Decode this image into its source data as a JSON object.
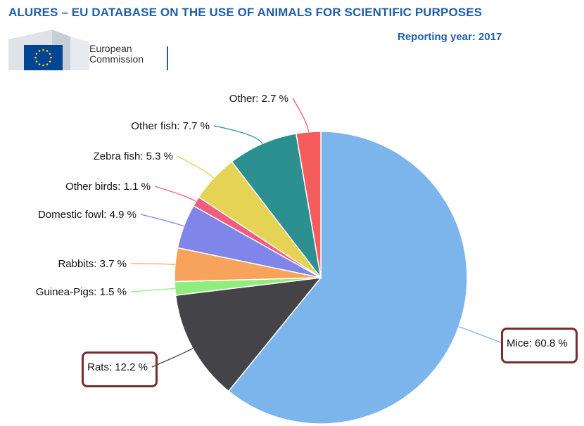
{
  "header": {
    "title": "ALURES – EU DATABASE ON THE USE OF ANIMALS FOR SCIENTIFIC PURPOSES",
    "reporting_year": "Reporting year: 2017"
  },
  "logo": {
    "line1": "European",
    "line2": "Commission",
    "flag_color": "#004494",
    "star_color": "#ffdd00"
  },
  "chart_data": {
    "type": "pie",
    "title": "",
    "start_angle_deg": 0,
    "slices": [
      {
        "label": "Mice: 60.8 %",
        "value": 60.8,
        "color": "#7cb5ec",
        "highlight": true
      },
      {
        "label": "Rats: 12.2 %",
        "value": 12.2,
        "color": "#434348",
        "highlight": true
      },
      {
        "label": "Guinea-Pigs: 1.5 %",
        "value": 1.5,
        "color": "#90ed7d",
        "highlight": false
      },
      {
        "label": "Rabbits: 3.7 %",
        "value": 3.7,
        "color": "#f7a35c",
        "highlight": false
      },
      {
        "label": "Domestic fowl: 4.9 %",
        "value": 4.9,
        "color": "#8085e9",
        "highlight": false
      },
      {
        "label": "Other birds: 1.1 %",
        "value": 1.1,
        "color": "#f15c80",
        "highlight": false
      },
      {
        "label": "Zebra fish: 5.3 %",
        "value": 5.3,
        "color": "#e4d354",
        "highlight": false
      },
      {
        "label": "Other fish: 7.7 %",
        "value": 7.7,
        "color": "#2b908f",
        "highlight": false
      },
      {
        "label": "Other: 2.7 %",
        "value": 2.7,
        "color": "#f45b5b",
        "highlight": false
      }
    ],
    "legend": "none"
  }
}
